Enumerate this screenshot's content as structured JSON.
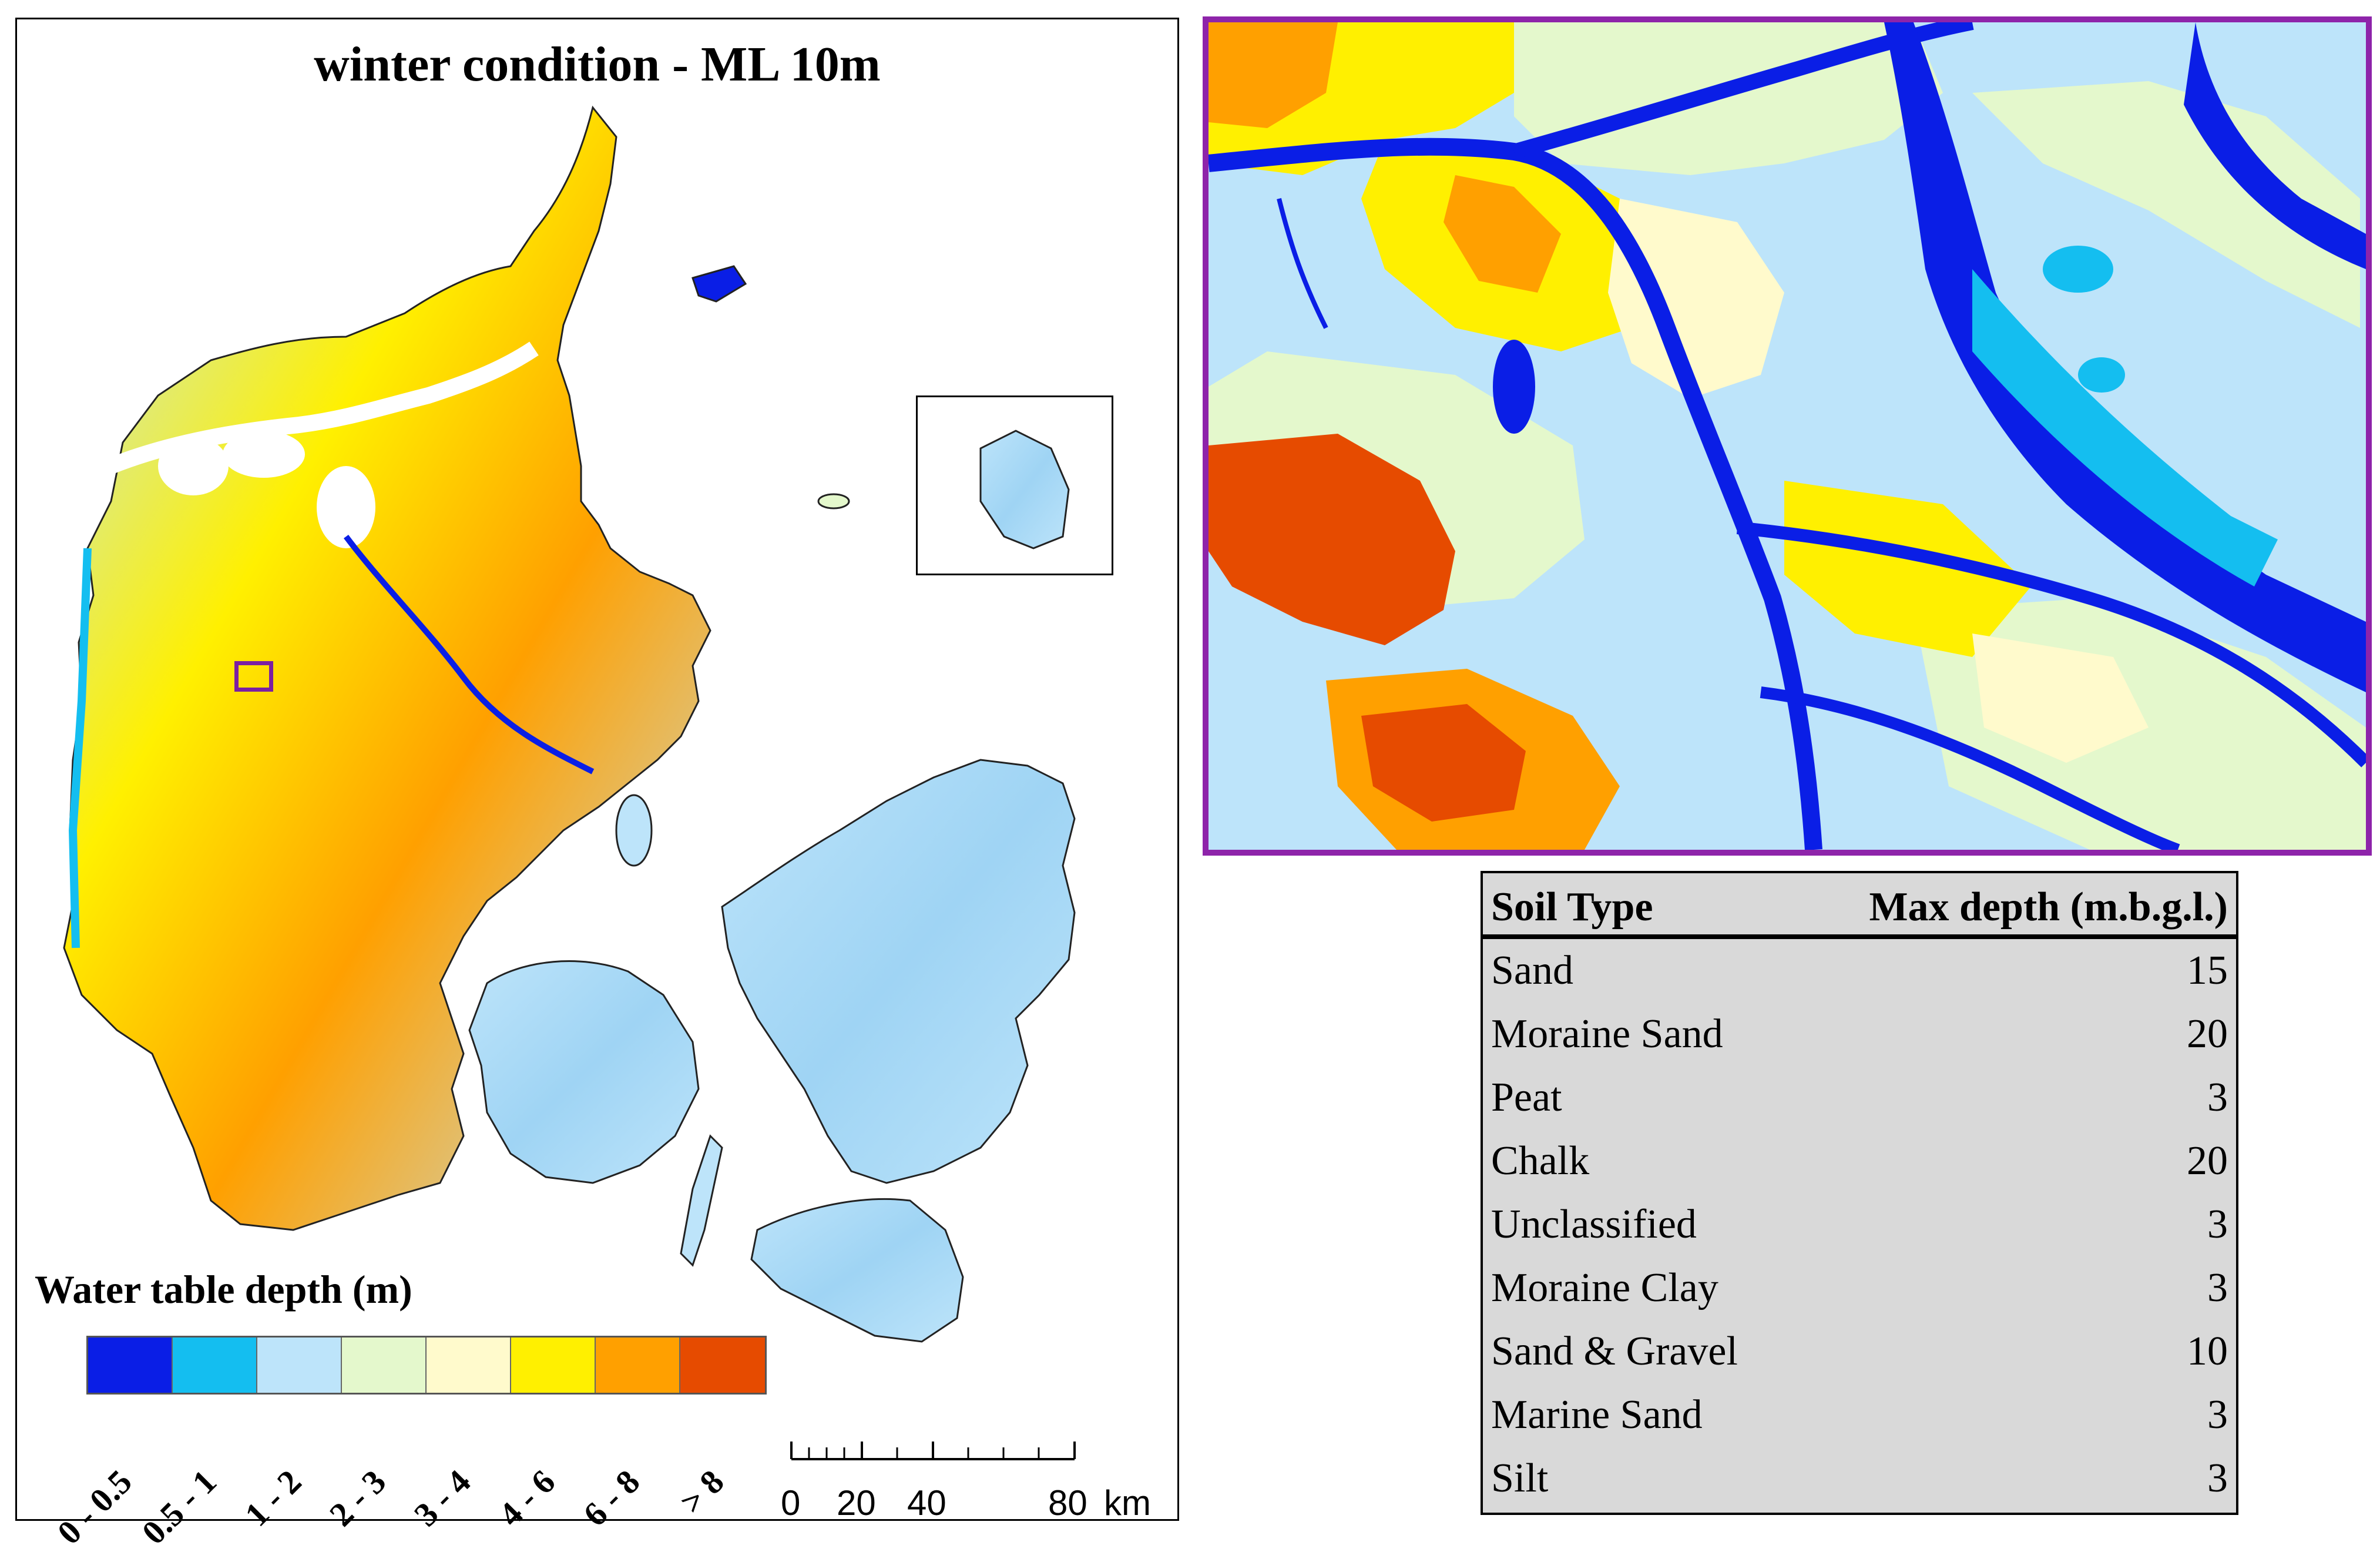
{
  "map": {
    "title": "winter condition - ML 10m",
    "legend_title": "Water table depth (m)",
    "legend": [
      {
        "label": "0 - 0.5",
        "color": "#0a1ee6"
      },
      {
        "label": "0.5 - 1",
        "color": "#14bef0"
      },
      {
        "label": "1 - 2",
        "color": "#bde4fa"
      },
      {
        "label": "2 - 3",
        "color": "#e4f8cc"
      },
      {
        "label": "3 - 4",
        "color": "#fffacc"
      },
      {
        "label": "4 - 6",
        "color": "#fff000"
      },
      {
        "label": "6 - 8",
        "color": "#ffa000"
      },
      {
        "label": "> 8",
        "color": "#e64b00"
      }
    ],
    "scale_labels": [
      "0",
      "20",
      "40",
      "80",
      "km"
    ],
    "locator_color": "#7b1fa2"
  },
  "zoom_panel": {
    "border_color": "#8e24aa"
  },
  "soil_table": {
    "headers": {
      "soil_type": "Soil Type",
      "max_depth": "Max depth (m.b.g.l.)"
    },
    "rows": [
      {
        "soil": "Sand",
        "depth": "15"
      },
      {
        "soil": "Moraine Sand",
        "depth": "20"
      },
      {
        "soil": "Peat",
        "depth": "3"
      },
      {
        "soil": "Chalk",
        "depth": "20"
      },
      {
        "soil": "Unclassified",
        "depth": "3"
      },
      {
        "soil": "Moraine Clay",
        "depth": "3"
      },
      {
        "soil": "Sand & Gravel",
        "depth": "10"
      },
      {
        "soil": "Marine Sand",
        "depth": "3"
      },
      {
        "soil": "Silt",
        "depth": "3"
      }
    ]
  }
}
